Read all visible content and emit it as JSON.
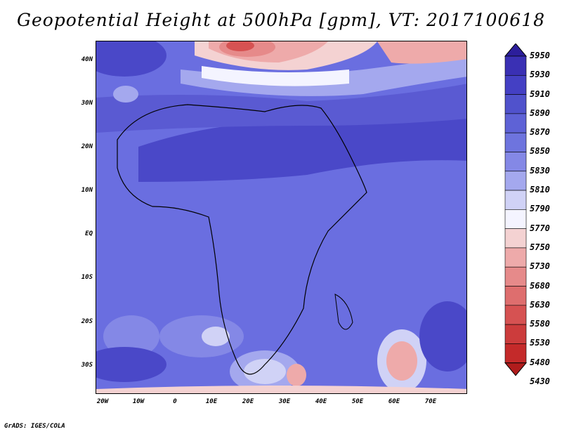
{
  "title": "Geopotential Height at 500hPa [gpm], VT: 2017100618",
  "credit": "GrADS: IGES/COLA",
  "map": {
    "lat_labels": [
      "40N",
      "30N",
      "20N",
      "10N",
      "EQ",
      "10S",
      "20S",
      "30S"
    ],
    "lon_labels": [
      "20W",
      "10W",
      "0",
      "10E",
      "20E",
      "30E",
      "40E",
      "50E",
      "60E",
      "70E"
    ],
    "background_color": "#6a6ee0"
  },
  "colorbar": {
    "levels": [
      "5950",
      "5930",
      "5910",
      "5890",
      "5870",
      "5850",
      "5830",
      "5810",
      "5790",
      "5770",
      "5750",
      "5730",
      "5680",
      "5630",
      "5580",
      "5530",
      "5480",
      "5430"
    ],
    "colors": [
      "#2c1e9c",
      "#3a30b4",
      "#4440c4",
      "#5052cc",
      "#5e62d6",
      "#6e74de",
      "#8488e6",
      "#a4a8ee",
      "#d0d2f6",
      "#f4f4ff",
      "#f4d2d2",
      "#eeaaaa",
      "#e68a8a",
      "#de6e6e",
      "#d65252",
      "#cc3c3c",
      "#c42a2a",
      "#b01c1c"
    ]
  }
}
